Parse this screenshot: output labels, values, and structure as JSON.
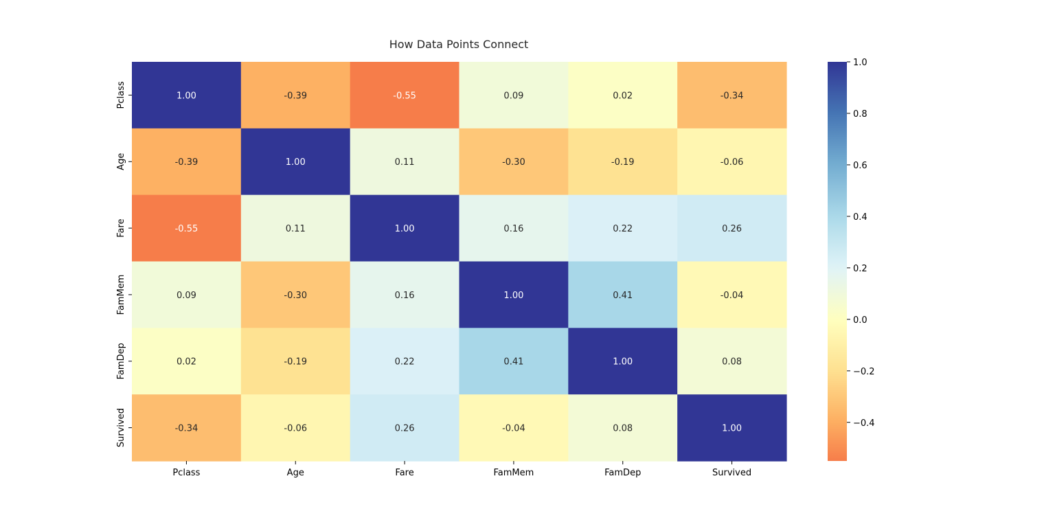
{
  "chart_data": {
    "type": "heatmap",
    "title": "How Data Points Connect",
    "xlabel": "",
    "ylabel": "",
    "x_categories": [
      "Pclass",
      "Age",
      "Fare",
      "FamMem",
      "FamDep",
      "Survived"
    ],
    "y_categories": [
      "Pclass",
      "Age",
      "Fare",
      "FamMem",
      "FamDep",
      "Survived"
    ],
    "values": [
      [
        1.0,
        -0.39,
        -0.55,
        0.09,
        0.02,
        -0.34
      ],
      [
        -0.39,
        1.0,
        0.11,
        -0.3,
        -0.19,
        -0.06
      ],
      [
        -0.55,
        0.11,
        1.0,
        0.16,
        0.22,
        0.26
      ],
      [
        0.09,
        -0.3,
        0.16,
        1.0,
        0.41,
        -0.04
      ],
      [
        0.02,
        -0.19,
        0.22,
        0.41,
        1.0,
        0.08
      ],
      [
        -0.34,
        -0.06,
        0.26,
        -0.04,
        0.08,
        1.0
      ]
    ],
    "value_format": "0.00",
    "colorbar": {
      "range": [
        -0.55,
        1.0
      ],
      "ticks": [
        1.0,
        0.8,
        0.6,
        0.4,
        0.2,
        0.0,
        -0.2,
        -0.4
      ],
      "tick_labels": [
        "1.0",
        "0.8",
        "0.6",
        "0.4",
        "0.2",
        "0.0",
        "−0.2",
        "−0.4"
      ],
      "colormap": "RdYlBu",
      "center": 0.0
    },
    "grid": false,
    "legend": "colorbar-right",
    "colors": {
      "text_dark": "#262626",
      "text_light": "#ffffff"
    }
  }
}
